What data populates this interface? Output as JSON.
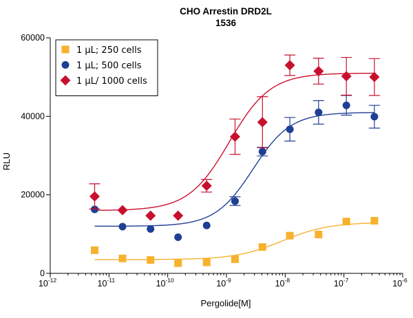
{
  "chart_data": {
    "type": "scatter",
    "title": "CHO Arrestin DRD2L",
    "subtitle": "1536",
    "xlabel": "Pergolide[M]",
    "ylabel": "RLU",
    "x_scale": "log",
    "xlim": [
      1e-12,
      1e-06
    ],
    "ylim": [
      0,
      60000
    ],
    "x_ticks": [
      {
        "base": "10",
        "exp": "-12"
      },
      {
        "base": "10",
        "exp": "-11"
      },
      {
        "base": "10",
        "exp": "-10"
      },
      {
        "base": "10",
        "exp": "-9"
      },
      {
        "base": "10",
        "exp": "-8"
      },
      {
        "base": "10",
        "exp": "-7"
      },
      {
        "base": "10",
        "exp": "-6"
      }
    ],
    "y_ticks": [
      "0",
      "20000",
      "40000",
      "60000"
    ],
    "grid": false,
    "legend_position": "top-left",
    "series": [
      {
        "name": "1 µL; 250 cells",
        "marker": "square",
        "color": "#f7b12e",
        "x": [
          5.7e-12,
          1.7e-11,
          5.1e-11,
          1.5e-10,
          4.6e-10,
          1.4e-09,
          4.1e-09,
          1.2e-08,
          3.7e-08,
          1.1e-07,
          3.3e-07
        ],
        "y": [
          5900,
          3800,
          3400,
          2600,
          2800,
          3600,
          6700,
          9600,
          9900,
          13200,
          13400
        ],
        "error": [
          0,
          0,
          0,
          0,
          0,
          0,
          0,
          0,
          0,
          0,
          0
        ],
        "fit": {
          "bottom": 3500,
          "top": 13000,
          "log_ec50": -8.05,
          "hill": 1.1
        }
      },
      {
        "name": "1 µL; 500 cells",
        "marker": "circle",
        "color": "#1e3f94",
        "x": [
          5.7e-12,
          1.7e-11,
          5.1e-11,
          1.5e-10,
          4.6e-10,
          1.4e-09,
          4.1e-09,
          1.2e-08,
          3.7e-08,
          1.1e-07,
          3.3e-07
        ],
        "y": [
          16300,
          11900,
          11300,
          9200,
          12200,
          18400,
          31000,
          36700,
          41000,
          42800,
          39900
        ],
        "error": [
          0,
          0,
          0,
          0,
          0,
          1100,
          1100,
          3000,
          3000,
          2500,
          2900
        ],
        "fit": {
          "bottom": 12000,
          "top": 41000,
          "log_ec50": -8.55,
          "hill": 1.35
        }
      },
      {
        "name": "1 µL/ 1000 cells",
        "marker": "diamond",
        "color": "#c8102e",
        "x": [
          5.7e-12,
          1.7e-11,
          5.1e-11,
          1.5e-10,
          4.6e-10,
          1.4e-09,
          4.1e-09,
          1.2e-08,
          3.7e-08,
          1.1e-07,
          3.3e-07
        ],
        "y": [
          19600,
          16100,
          14700,
          14700,
          22300,
          34800,
          38500,
          53000,
          51500,
          50200,
          50000
        ],
        "error": [
          3200,
          0,
          0,
          0,
          1600,
          4500,
          6500,
          2600,
          3300,
          4800,
          4700
        ],
        "fit": {
          "bottom": 16000,
          "top": 51000,
          "log_ec50": -8.95,
          "hill": 1.25
        }
      }
    ]
  }
}
